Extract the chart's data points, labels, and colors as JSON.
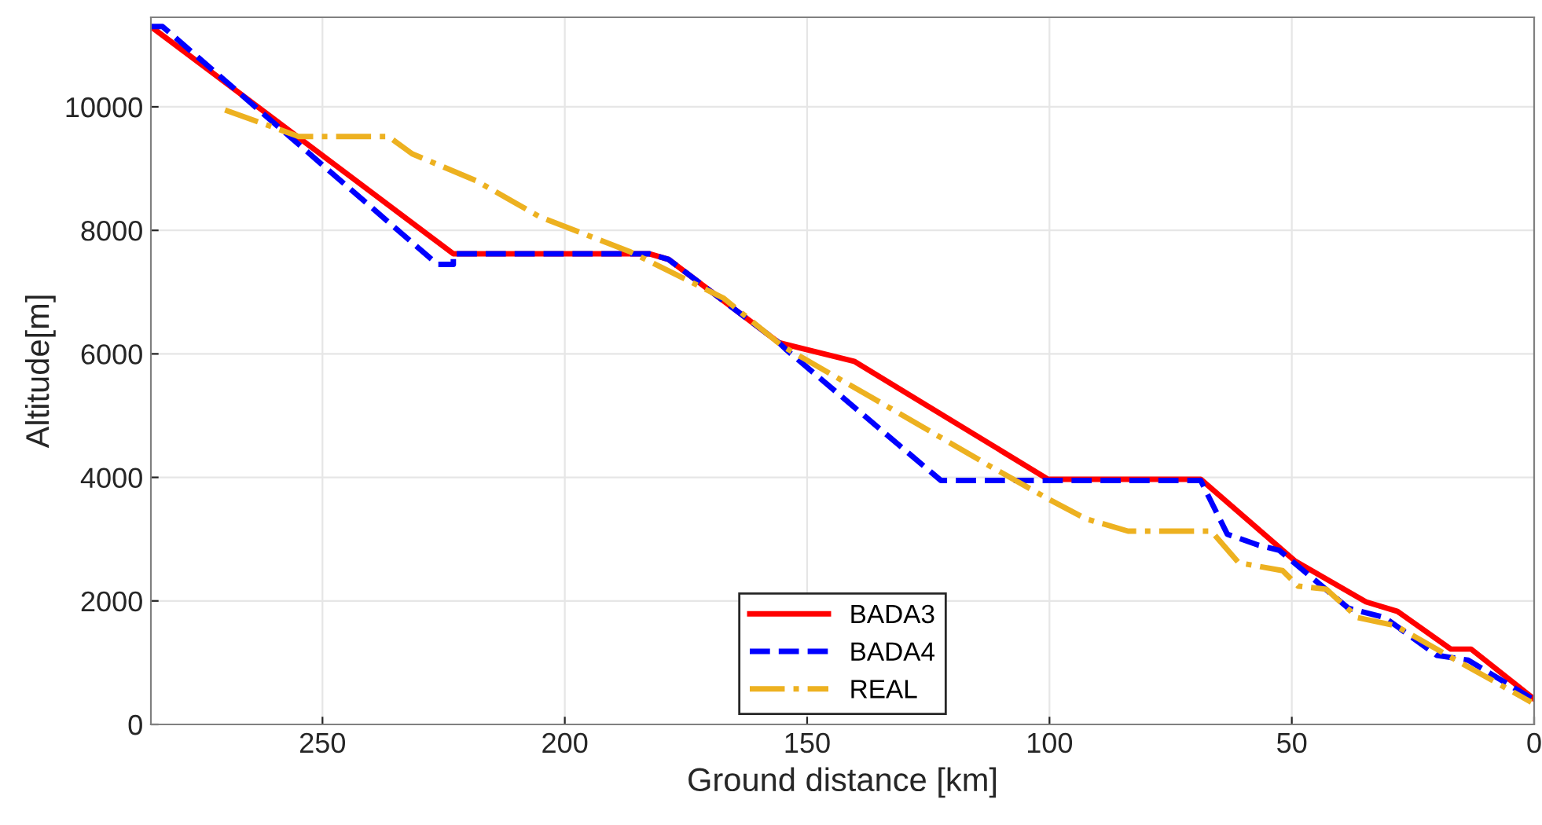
{
  "chart_data": {
    "type": "line",
    "xlabel": "Ground distance [km]",
    "ylabel": "Altitude[m]",
    "xlim": [
      285.4,
      0
    ],
    "ylim": [
      0,
      11450
    ],
    "xticks": [
      250,
      200,
      150,
      100,
      50,
      0
    ],
    "yticks": [
      0,
      2000,
      4000,
      6000,
      8000,
      10000
    ],
    "grid": true,
    "legend": "bottom",
    "series": [
      {
        "name": "BADA3",
        "color": "#ff0000",
        "line_style": "solid",
        "x": [
          285.4,
          223,
          182.5,
          178.6,
          155.8,
          140.3,
          100.3,
          68.8,
          49.4,
          34.7,
          28.2,
          17.2,
          13.0,
          0.0
        ],
        "values": [
          11300,
          7620,
          7620,
          7530,
          6180,
          5880,
          3970,
          3970,
          2650,
          1985,
          1830,
          1220,
          1220,
          410
        ]
      },
      {
        "name": "BADA4",
        "color": "#0000ff",
        "line_style": "dashed",
        "x": [
          285.4,
          283,
          226.3,
          223,
          223,
          182.5,
          178.6,
          155.8,
          154.2,
          122.4,
          68.8,
          63.3,
          56.8,
          52.6,
          38.3,
          30.8,
          20.1,
          13.6,
          0.3
        ],
        "values": [
          11300,
          11300,
          7450,
          7450,
          7620,
          7620,
          7530,
          6180,
          6060,
          3950,
          3950,
          3080,
          2900,
          2820,
          1880,
          1730,
          1120,
          1040,
          410
        ]
      },
      {
        "name": "REAL",
        "color": "#edb120",
        "line_style": "dashdot",
        "x": [
          270.1,
          254.9,
          236.4,
          231.5,
          218.2,
          205.2,
          186.7,
          167.2,
          155.2,
          131.5,
          112,
          100,
          92.5,
          83.8,
          66.6,
          61.0,
          51.9,
          48.7,
          42.9,
          36.4,
          28.6,
          17.9,
          0.6
        ],
        "values": [
          9950,
          9520,
          9520,
          9240,
          8800,
          8220,
          7660,
          6900,
          6130,
          5060,
          4170,
          3640,
          3330,
          3130,
          3130,
          2620,
          2490,
          2240,
          2190,
          1730,
          1600,
          1120,
          360
        ]
      }
    ]
  }
}
